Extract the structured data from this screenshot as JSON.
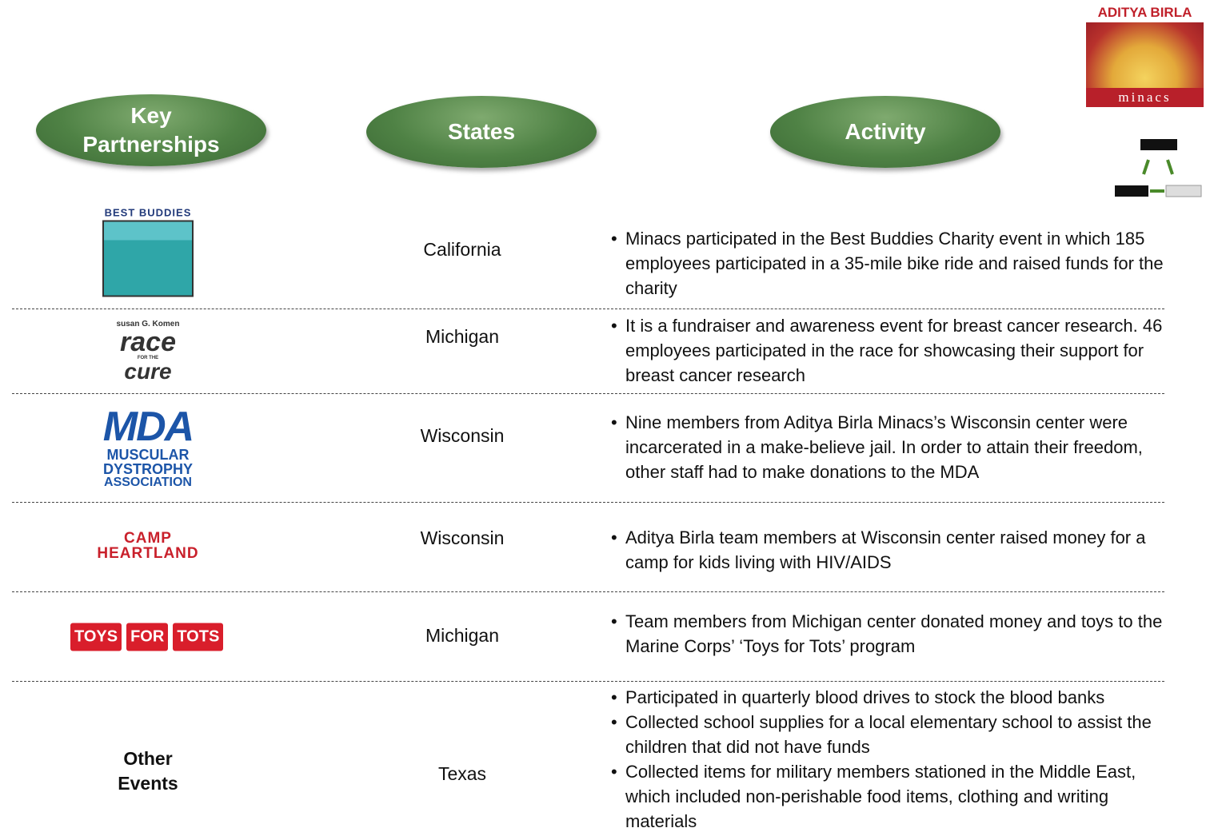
{
  "brand": {
    "name": "ADITYA BIRLA",
    "sub": "minacs"
  },
  "headers": [
    "Key Partnerships",
    "States",
    "Activity"
  ],
  "rows": [
    {
      "partner": [
        "BEST BUDDIES"
      ],
      "state": "California",
      "activity": [
        "Minacs participated in the Best Buddies Charity event in which 185 employees participated in a 35-mile bike ride and raised funds for the charity"
      ]
    },
    {
      "partner": [
        "susan G. Komen",
        "race",
        "FOR THE",
        "cure"
      ],
      "state": "Michigan",
      "activity": [
        "It is a fundraiser and awareness event for breast cancer research. 46 employees participated in the race for showcasing their support for breast cancer research"
      ]
    },
    {
      "partner": [
        "MDA",
        "MUSCULAR",
        "DYSTROPHY",
        "ASSOCIATION"
      ],
      "state": "Wisconsin",
      "activity": [
        "Nine members from Aditya Birla Minacs’s Wisconsin center were incarcerated in a make-believe jail. In order to attain their freedom, other staff had to make donations to the MDA"
      ]
    },
    {
      "partner": [
        "CAMP",
        "HEARTLAND"
      ],
      "state": "Wisconsin",
      "activity": [
        "Aditya Birla team members at Wisconsin center raised money for a camp for kids living with HIV/AIDS"
      ]
    },
    {
      "partner": [
        "TOYS",
        "FOR",
        "TOTS"
      ],
      "state": "Michigan",
      "activity": [
        "Team members from Michigan center donated money and toys to the Marine Corps’ ‘Toys for Tots’ program"
      ]
    },
    {
      "partner": [
        "Other Events"
      ],
      "state": "Texas",
      "activity": [
        "Participated in quarterly blood drives to stock the blood banks",
        "Collected school supplies for a local elementary school to assist the children that did not have funds",
        "Collected items for military members stationed in the Middle East, which included non-perishable food items, clothing and writing materials"
      ]
    }
  ]
}
